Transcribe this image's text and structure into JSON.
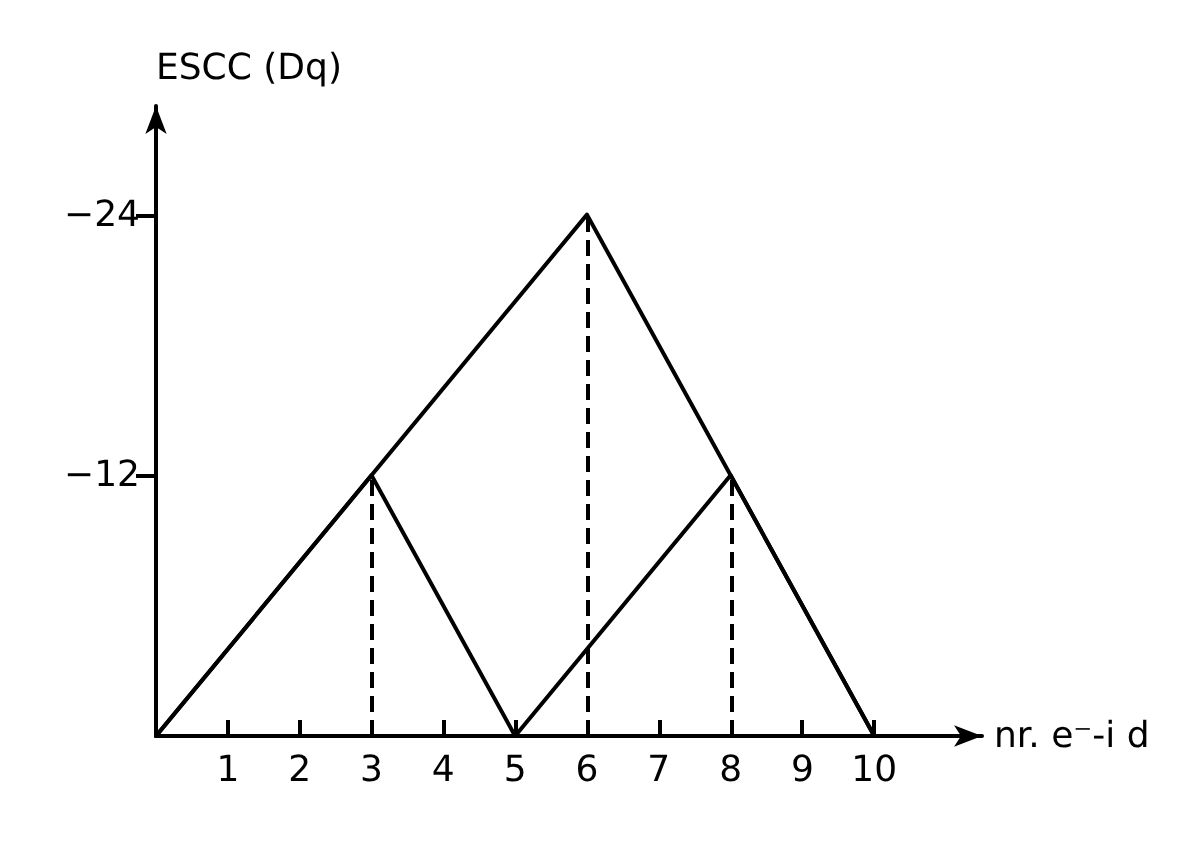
{
  "chart_data": {
    "type": "line",
    "ylabel": "ESCC (Dq)",
    "xlabel": "nr. e⁻-i d",
    "series": [
      {
        "color": "#000000",
        "x": [
          0,
          6,
          10
        ],
        "values": [
          0,
          -24,
          0
        ]
      },
      {
        "color": "#000000",
        "x": [
          0,
          3,
          5,
          8,
          10
        ],
        "values": [
          0,
          -12,
          0,
          -12,
          0
        ]
      }
    ],
    "xlim": [
      0,
      11.5
    ],
    "xticks": [
      1,
      2,
      3,
      4,
      5,
      6,
      7,
      8,
      9,
      10
    ],
    "ylim": [
      0,
      -29
    ],
    "yticks": [
      -12,
      -24
    ],
    "ref_lines": [
      {
        "axis": "x",
        "value": 3,
        "line_style": "dashed"
      },
      {
        "axis": "x",
        "value": 6,
        "line_style": "dashed"
      },
      {
        "axis": "x",
        "value": 8,
        "line_style": "dashed"
      }
    ],
    "grid": false,
    "marker": "none",
    "line_style": "solid"
  }
}
